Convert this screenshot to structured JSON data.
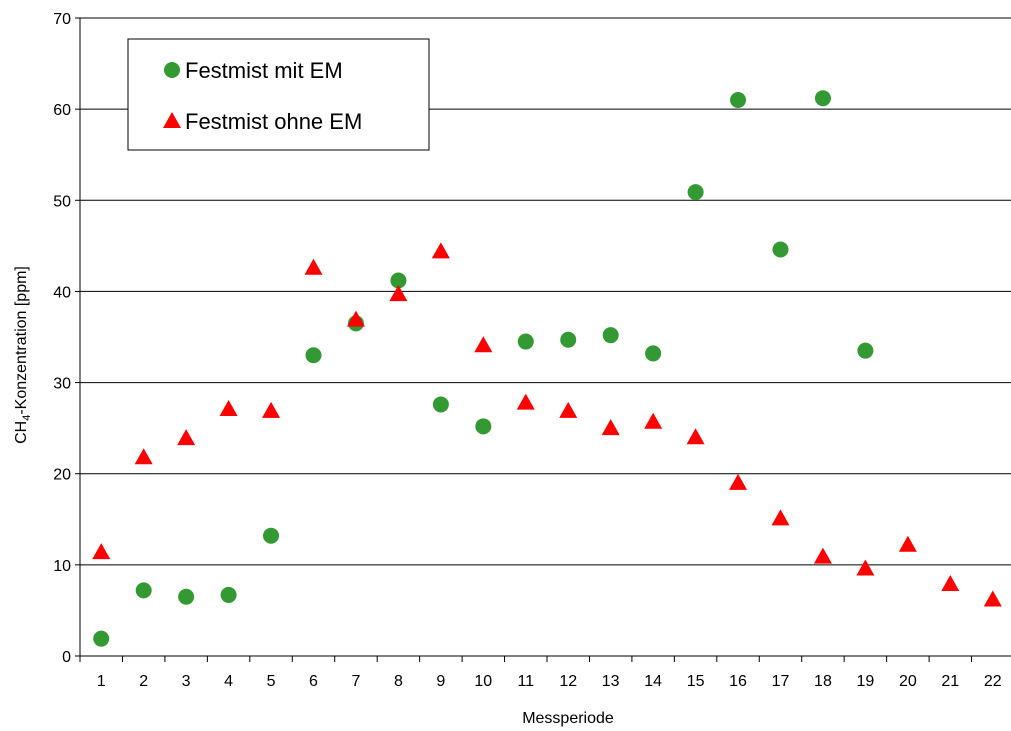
{
  "chart_data": {
    "type": "scatter",
    "title": "",
    "xlabel": "Messperiode",
    "ylabel_main": "CH",
    "ylabel_sub": "4",
    "ylabel_rest": "-Konzentration [ppm]",
    "ylim": [
      0,
      70
    ],
    "yticks": [
      0,
      10,
      20,
      30,
      40,
      50,
      60,
      70
    ],
    "categories": [
      "1",
      "2",
      "3",
      "4",
      "5",
      "6",
      "7",
      "8",
      "9",
      "10",
      "11",
      "12",
      "13",
      "14",
      "15",
      "16",
      "17",
      "18",
      "19",
      "20",
      "21",
      "22"
    ],
    "grid": true,
    "legend_position": "top-left",
    "series": [
      {
        "name": "Festmist mit EM",
        "marker": "circle",
        "color": "#339933",
        "points": [
          {
            "x": 1,
            "y": 1.9
          },
          {
            "x": 2,
            "y": 7.2
          },
          {
            "x": 3,
            "y": 6.5
          },
          {
            "x": 4,
            "y": 6.7
          },
          {
            "x": 5,
            "y": 13.2
          },
          {
            "x": 6,
            "y": 33.0
          },
          {
            "x": 7,
            "y": 36.5
          },
          {
            "x": 8,
            "y": 41.2
          },
          {
            "x": 9,
            "y": 27.6
          },
          {
            "x": 10,
            "y": 25.2
          },
          {
            "x": 11,
            "y": 34.5
          },
          {
            "x": 12,
            "y": 34.7
          },
          {
            "x": 13,
            "y": 35.2
          },
          {
            "x": 14,
            "y": 33.2
          },
          {
            "x": 15,
            "y": 50.9
          },
          {
            "x": 16,
            "y": 61.0
          },
          {
            "x": 17,
            "y": 44.6
          },
          {
            "x": 18,
            "y": 61.2
          },
          {
            "x": 19,
            "y": 33.5
          }
        ]
      },
      {
        "name": "Festmist ohne EM",
        "marker": "triangle",
        "color": "#ff0000",
        "points": [
          {
            "x": 1,
            "y": 11.4
          },
          {
            "x": 2,
            "y": 21.8
          },
          {
            "x": 3,
            "y": 23.9
          },
          {
            "x": 4,
            "y": 27.1
          },
          {
            "x": 5,
            "y": 26.9
          },
          {
            "x": 6,
            "y": 42.6
          },
          {
            "x": 7,
            "y": 36.9
          },
          {
            "x": 8,
            "y": 39.7
          },
          {
            "x": 9,
            "y": 44.4
          },
          {
            "x": 10,
            "y": 34.1
          },
          {
            "x": 11,
            "y": 27.8
          },
          {
            "x": 12,
            "y": 26.9
          },
          {
            "x": 13,
            "y": 25.0
          },
          {
            "x": 14,
            "y": 25.7
          },
          {
            "x": 15,
            "y": 24.0
          },
          {
            "x": 16,
            "y": 19.0
          },
          {
            "x": 17,
            "y": 15.1
          },
          {
            "x": 18,
            "y": 10.9
          },
          {
            "x": 19,
            "y": 9.6
          },
          {
            "x": 20,
            "y": 12.2
          },
          {
            "x": 21,
            "y": 7.9
          },
          {
            "x": 22,
            "y": 6.2
          }
        ]
      }
    ]
  }
}
